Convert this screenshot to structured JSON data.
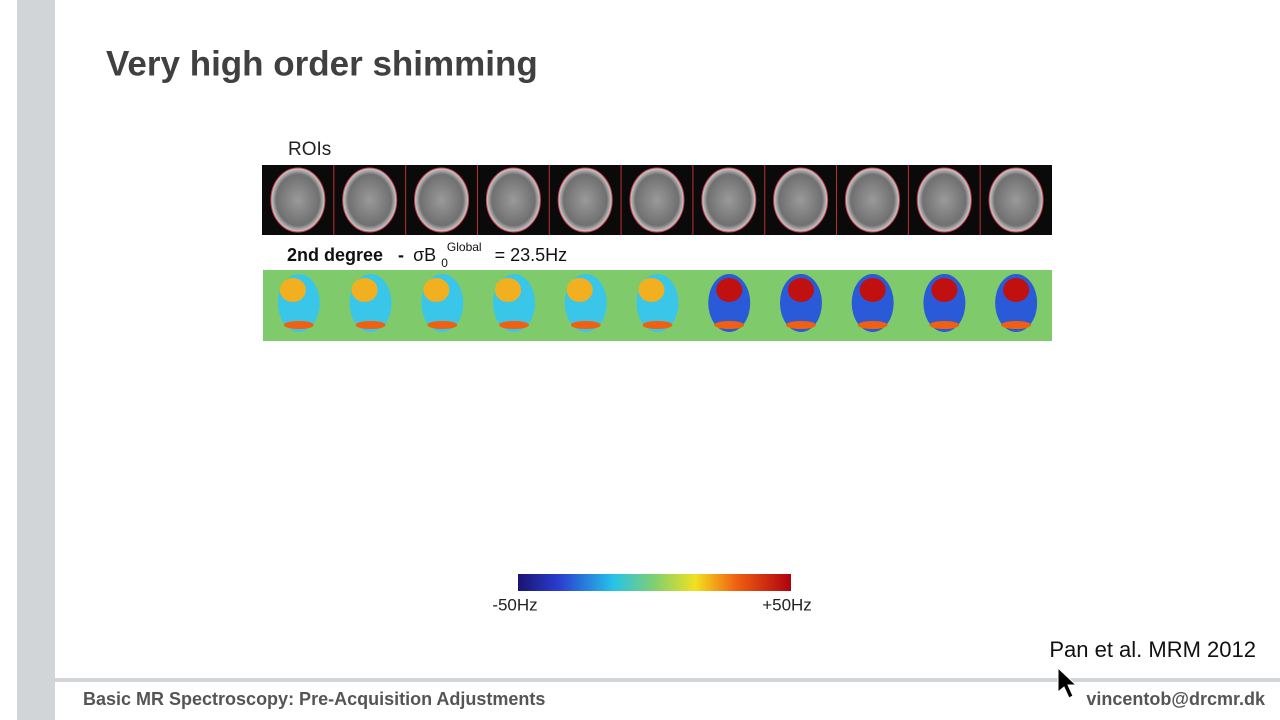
{
  "slide": {
    "title": "Very high order shimming",
    "figure": {
      "roi_label": "ROIs",
      "degree": "2nd degree",
      "separator": "-",
      "symbol": "σB",
      "subscript": "0",
      "superscript": "Global",
      "value": "= 23.5Hz",
      "colorbar_min": "-50Hz",
      "colorbar_max": "+50Hz"
    },
    "citation": "Pan et al. MRM 2012"
  },
  "footer": {
    "left": "Basic MR Spectroscopy: Pre-Acquisition Adjustments",
    "right": "vincentob@drcmr.dk"
  }
}
